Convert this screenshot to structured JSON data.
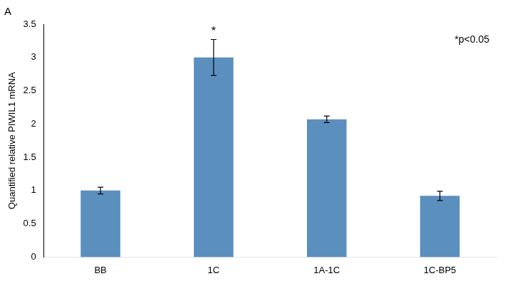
{
  "chart_data": {
    "type": "bar",
    "title": "A",
    "categories": [
      "BB",
      "1C",
      "1A-1C",
      "1C-BP5"
    ],
    "values": [
      1.0,
      3.0,
      2.07,
      0.92
    ],
    "errors": [
      0.05,
      0.27,
      0.05,
      0.07
    ],
    "color": "#5b8fbe",
    "ylabel": "Quantified relative PIWIL1 mRNA",
    "ylim": [
      0,
      3.5
    ],
    "yticks": [
      0,
      0.5,
      1,
      1.5,
      2,
      2.5,
      3,
      3.5
    ],
    "grid": false,
    "annotations": [
      {
        "text": "*",
        "category": "1C"
      },
      {
        "text": "*p<0.05"
      }
    ]
  }
}
